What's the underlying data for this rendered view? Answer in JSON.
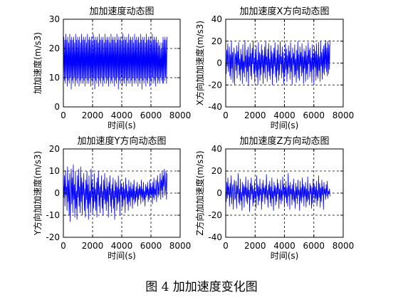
{
  "caption": "图 4  加加速度变化图",
  "chart_data": [
    {
      "type": "line",
      "title": "加加速度动态图",
      "xlabel": "时间(s)",
      "ylabel": "加加速度(m/s3)",
      "xlim": [
        0,
        8000
      ],
      "ylim": [
        0,
        30
      ],
      "xticks": [
        0,
        2000,
        4000,
        6000,
        8000
      ],
      "yticks": [
        0,
        10,
        20,
        30
      ],
      "x_range": [
        0,
        7100
      ],
      "grid": true,
      "color": "#0000ff",
      "series": [
        {
          "values": [
            8,
            24,
            9,
            23,
            8,
            25,
            10,
            23,
            7,
            24,
            9,
            22,
            8,
            25,
            10,
            23,
            6,
            24,
            9,
            23,
            8,
            24,
            10,
            22,
            7,
            25,
            9,
            23,
            8,
            24,
            10,
            23,
            7,
            24,
            9,
            22,
            8,
            25,
            10,
            23,
            8,
            24,
            9,
            23,
            7,
            24,
            10,
            22,
            8,
            25,
            9,
            23,
            8,
            24,
            10,
            23,
            7,
            24,
            9,
            22,
            8,
            25,
            10,
            23,
            6,
            24,
            9,
            23,
            8,
            24,
            10,
            22,
            7,
            25,
            9,
            23,
            8,
            24,
            10,
            23,
            7,
            24,
            9,
            22,
            8,
            25,
            10,
            23,
            8,
            24,
            9,
            23,
            7,
            24,
            10,
            22,
            8,
            25,
            9,
            23,
            8,
            24,
            10,
            23,
            7,
            24,
            9,
            22,
            8,
            25,
            10,
            23,
            6,
            24,
            9,
            23,
            8,
            24,
            10,
            22,
            7,
            25,
            9,
            23,
            8,
            24,
            10,
            23,
            7,
            24,
            9,
            22,
            8,
            25,
            10,
            23,
            8,
            24,
            9,
            23,
            7,
            24,
            10,
            22,
            8,
            25,
            9,
            23,
            8,
            24,
            10,
            23,
            7,
            24,
            9,
            22,
            8,
            25,
            10,
            23,
            6,
            24,
            9,
            23,
            8,
            24,
            10,
            22,
            7,
            25,
            9,
            23,
            8,
            24,
            10,
            23,
            7,
            24,
            9,
            22,
            8,
            25,
            10,
            23,
            8,
            24,
            9,
            23,
            7,
            24,
            10,
            22,
            8,
            23,
            9,
            21,
            8,
            22,
            10,
            20,
            9,
            22,
            8,
            24,
            8,
            23,
            9,
            24,
            10,
            23,
            8,
            24
          ]
        }
      ]
    },
    {
      "type": "line",
      "title": "加加速度X方向动态图",
      "xlabel": "时间(s)",
      "ylabel": "X方向加加速度(m/s3)",
      "xlim": [
        0,
        8000
      ],
      "ylim": [
        -40,
        40
      ],
      "xticks": [
        0,
        2000,
        4000,
        6000,
        8000
      ],
      "yticks": [
        -40,
        -20,
        0,
        20,
        40
      ],
      "x_range": [
        0,
        7100
      ],
      "grid": true,
      "color": "#0000ff",
      "series": [
        {
          "values": [
            5,
            -10,
            12,
            -3,
            18,
            -8,
            2,
            15,
            -12,
            8,
            -15,
            20,
            -5,
            10,
            -18,
            6,
            14,
            -20,
            3,
            9,
            -7,
            16,
            -14,
            11,
            -2,
            19,
            -11,
            4,
            -16,
            13,
            -6,
            8,
            -19,
            17,
            -9,
            2,
            -13,
            21,
            -4,
            7,
            -17,
            12,
            -8,
            15,
            -21,
            6,
            -3,
            18,
            -12,
            9,
            -15,
            14,
            -1,
            20,
            -10,
            5,
            -18,
            11,
            -7,
            16,
            -13,
            3,
            -20,
            19,
            -6,
            10,
            -16,
            8,
            -11,
            17,
            -4,
            12,
            -19,
            7,
            -9,
            15,
            -14,
            20,
            -2,
            6,
            -17,
            13,
            -8,
            18,
            -12,
            4,
            -15,
            16,
            -5,
            11,
            -20,
            9,
            -10,
            14,
            -3,
            19,
            -13,
            5,
            -18,
            12,
            -7,
            17,
            -16,
            8,
            -11,
            20,
            -1,
            6,
            -14,
            15,
            -9,
            10,
            -19,
            3,
            -12,
            18,
            -6,
            13,
            -17,
            7,
            -10,
            16,
            -4,
            11,
            -15,
            19,
            -8,
            5,
            -20,
            14,
            -2,
            9,
            -13,
            17,
            -11,
            4,
            -18,
            12,
            -7,
            20,
            -14,
            8,
            -16,
            15,
            -3,
            10,
            -12,
            18,
            -9,
            6,
            -19,
            13,
            -5,
            11,
            -17,
            16,
            -10,
            7,
            -15,
            19,
            -1,
            12,
            -13,
            14,
            -8,
            5,
            -18,
            17,
            -6,
            9,
            -20,
            15,
            -4,
            11,
            -16,
            18,
            -12,
            8,
            -14,
            19,
            -7,
            6,
            -17,
            20,
            -3,
            10,
            -15,
            13,
            -9,
            16,
            -11,
            18,
            -5,
            21,
            -8,
            14,
            -12,
            20,
            -10,
            17,
            -6,
            21
          ]
        }
      ]
    },
    {
      "type": "line",
      "title": "加加速度Y方向动态图",
      "xlabel": "时间(s)",
      "ylabel": "Y方向加加速度(m/s3)",
      "xlim": [
        0,
        8000
      ],
      "ylim": [
        -20,
        20
      ],
      "xticks": [
        0,
        2000,
        4000,
        6000,
        8000
      ],
      "yticks": [
        -20,
        -10,
        0,
        10,
        20
      ],
      "x_range": [
        0,
        7100
      ],
      "grid": true,
      "color": "#0000ff",
      "series": [
        {
          "values": [
            5,
            -2,
            8,
            -6,
            10,
            -1,
            3,
            -8,
            12,
            -4,
            6,
            -10,
            9,
            -13,
            2,
            11,
            -5,
            7,
            -9,
            13,
            -3,
            4,
            -11,
            10,
            -7,
            1,
            -12,
            8,
            -2,
            11,
            -6,
            3,
            -9,
            12,
            -4,
            7,
            -10,
            5,
            -1,
            9,
            -8,
            2,
            -11,
            6,
            -3,
            10,
            -7,
            4,
            -12,
            8,
            -5,
            1,
            -9,
            11,
            -2,
            6,
            -10,
            3,
            -7,
            9,
            -4,
            2,
            -8,
            5,
            -11,
            7,
            -1,
            10,
            -6,
            3,
            -9,
            4,
            -2,
            8,
            -7,
            1,
            -10,
            6,
            -3,
            9,
            -5,
            2,
            -8,
            7,
            -4,
            3,
            -11,
            5,
            -1,
            8,
            -6,
            2,
            -9,
            4,
            -3,
            7,
            -7,
            1,
            -12,
            6,
            -2,
            5,
            -8,
            3,
            -5,
            8,
            -4,
            2,
            -10,
            6,
            -1,
            4,
            -7,
            3,
            -6,
            5,
            -3,
            2,
            -9,
            7,
            -2,
            4,
            -5,
            1,
            -8,
            6,
            -4,
            3,
            -6,
            5,
            -2,
            2,
            -7,
            4,
            -3,
            6,
            -5,
            1,
            -4,
            3,
            -2,
            5,
            -6,
            2,
            -3,
            4,
            -1,
            3,
            -5,
            6,
            -2,
            2,
            -4,
            5,
            -3,
            1,
            -6,
            4,
            -2,
            3,
            -1,
            5,
            -4,
            2,
            -3,
            6,
            -2,
            4,
            -1,
            3,
            -5,
            5,
            -2,
            7,
            -3,
            2,
            -1,
            6,
            -4,
            3,
            8,
            -2,
            5,
            -1,
            4,
            9,
            -3,
            6,
            1,
            10,
            -2,
            8,
            3,
            11,
            -1,
            2,
            10,
            -3,
            9
          ]
        }
      ]
    },
    {
      "type": "line",
      "title": "加加速度Z方向动态图",
      "xlabel": "时间(s)",
      "ylabel": "Z方向加加速度(m/s3)",
      "xlim": [
        0,
        8000
      ],
      "ylim": [
        -40,
        40
      ],
      "xticks": [
        0,
        2000,
        4000,
        6000,
        8000
      ],
      "yticks": [
        -40,
        -20,
        0,
        20,
        40
      ],
      "x_range": [
        0,
        7100
      ],
      "grid": true,
      "color": "#0000ff",
      "series": [
        {
          "values": [
            3,
            -8,
            10,
            -5,
            14,
            -2,
            6,
            -12,
            9,
            -4,
            16,
            -10,
            2,
            8,
            -15,
            5,
            12,
            -6,
            -3,
            11,
            -14,
            7,
            -1,
            18,
            -9,
            4,
            -11,
            13,
            -7,
            1,
            -16,
            10,
            -3,
            8,
            -13,
            6,
            -2,
            15,
            -8,
            5,
            -10,
            12,
            -4,
            3,
            -17,
            9,
            -6,
            14,
            -1,
            7,
            -12,
            4,
            -9,
            11,
            -5,
            2,
            -14,
            16,
            -3,
            8,
            -11,
            6,
            -7,
            13,
            -2,
            4,
            -15,
            9,
            -8,
            12,
            -1,
            5,
            -10,
            7,
            -4,
            17,
            -6,
            3,
            -13,
            8,
            -2,
            11,
            -9,
            6,
            -12,
            14,
            -5,
            2,
            -16,
            10,
            -3,
            7,
            -11,
            5,
            -8,
            13,
            -1,
            9,
            -14,
            4,
            -6,
            12,
            -10,
            3,
            -7,
            15,
            -2,
            8,
            -13,
            6,
            -4,
            11,
            -9,
            5,
            -12,
            18,
            -3,
            7,
            -15,
            10,
            -1,
            4,
            -11,
            8,
            -6,
            13,
            -8,
            2,
            -14,
            9,
            -5,
            6,
            -10,
            12,
            -2,
            3,
            -16,
            11,
            -7,
            5,
            -9,
            14,
            -4,
            8,
            -12,
            6,
            -3,
            10,
            -13,
            4,
            -8,
            15,
            -6,
            2,
            -11,
            9,
            -1,
            7,
            -14,
            5,
            -10,
            13,
            -2,
            8,
            -9,
            6,
            -5,
            11,
            -12,
            3,
            -7,
            16,
            -4,
            9,
            -13,
            5,
            -8,
            12,
            -2,
            6,
            -15,
            10,
            -1,
            4,
            -6,
            8,
            -3,
            11,
            -5,
            2,
            -1,
            4,
            -3
          ]
        }
      ]
    }
  ]
}
